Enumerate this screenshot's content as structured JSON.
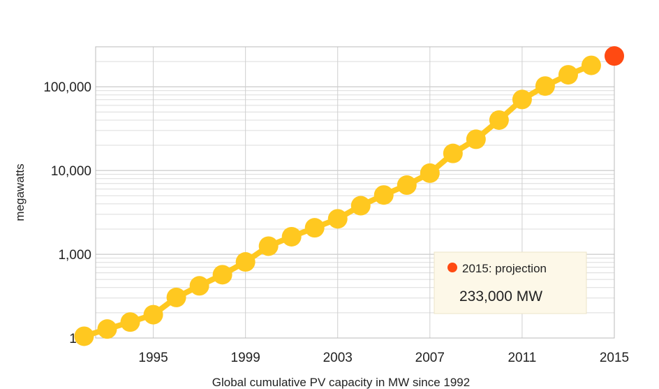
{
  "chart_data": {
    "type": "line",
    "title": "",
    "xlabel": "Global cumulative PV capacity in MW since 1992",
    "ylabel": "megawatts",
    "yscale": "log",
    "xlim": [
      1992.5,
      2015
    ],
    "ylim": [
      100,
      300000
    ],
    "grid": true,
    "x_ticks": [
      1995,
      1999,
      2003,
      2007,
      2011,
      2015
    ],
    "x_tick_labels": [
      "1995",
      "1999",
      "2003",
      "2007",
      "2011",
      "2015"
    ],
    "y_ticks": [
      100,
      1000,
      10000,
      100000
    ],
    "y_tick_labels": [
      "100",
      "1,000",
      "10,000",
      "100,000"
    ],
    "series": [
      {
        "color": "#ffc820",
        "x": [
          1992,
          1993,
          1994,
          1995,
          1996,
          1997,
          1998,
          1999,
          2000,
          2001,
          2002,
          2003,
          2004,
          2005,
          2006,
          2007,
          2008,
          2009,
          2010,
          2011,
          2012,
          2013,
          2014
        ],
        "values": [
          105,
          128,
          155,
          190,
          305,
          420,
          570,
          810,
          1250,
          1620,
          2070,
          2650,
          3800,
          5100,
          6700,
          9300,
          16000,
          23600,
          40000,
          70500,
          102000,
          139000,
          180000
        ]
      }
    ],
    "projection": {
      "x": 2015,
      "value": 233000,
      "color": "#ff4a12"
    },
    "legend": {
      "position": "bottom-right",
      "label": "2015: projection",
      "value_text": "233,000 MW"
    }
  }
}
